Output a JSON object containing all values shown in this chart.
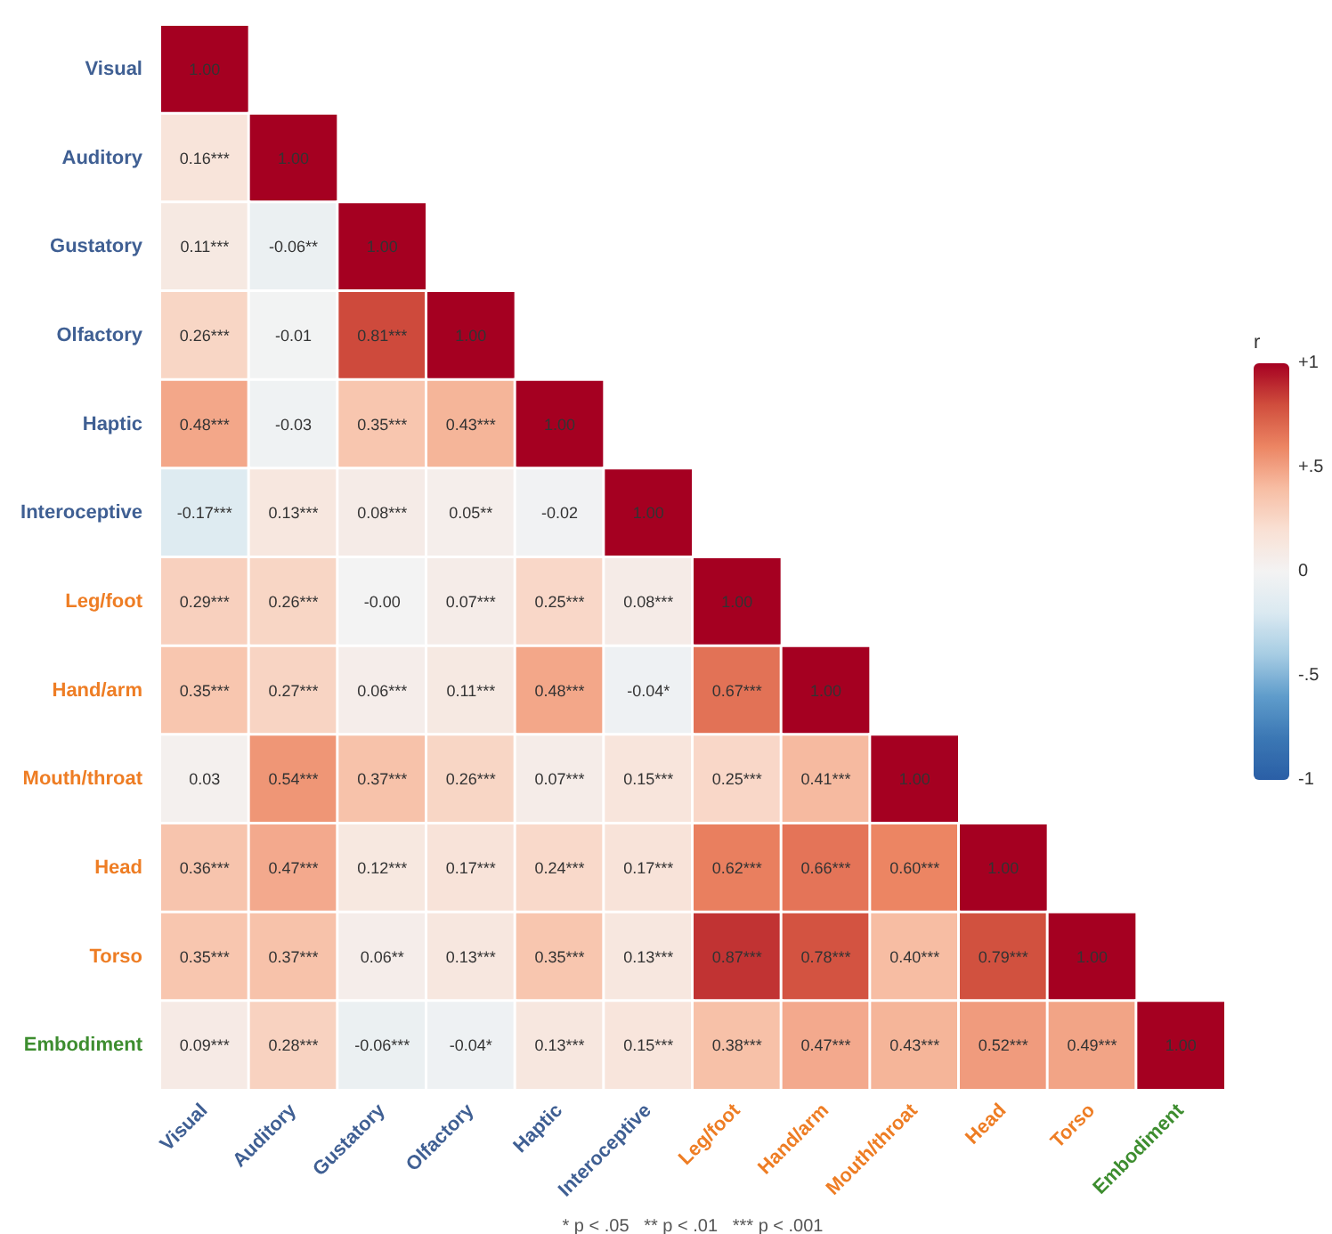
{
  "chart_data": {
    "type": "heatmap",
    "categories": [
      "Visual",
      "Auditory",
      "Gustatory",
      "Olfactory",
      "Haptic",
      "Interoceptive",
      "Leg/foot",
      "Hand/arm",
      "Mouth/throat",
      "Head",
      "Torso",
      "Embodiment"
    ],
    "y_categories": [
      "Visual",
      "Auditory",
      "Gustatory",
      "Olfactory",
      "Haptic",
      "Interoceptive",
      "Leg/foot",
      "Hand/arm",
      "Mouth/throat",
      "Head",
      "Torso",
      "Embodiment"
    ],
    "cells": [
      [
        1.0,
        null,
        null,
        null,
        null,
        null,
        null,
        null,
        null,
        null,
        null,
        null
      ],
      [
        0.16,
        1.0,
        null,
        null,
        null,
        null,
        null,
        null,
        null,
        null,
        null,
        null
      ],
      [
        0.11,
        -0.06,
        1.0,
        null,
        null,
        null,
        null,
        null,
        null,
        null,
        null,
        null
      ],
      [
        0.26,
        -0.01,
        0.81,
        1.0,
        null,
        null,
        null,
        null,
        null,
        null,
        null,
        null
      ],
      [
        0.48,
        -0.03,
        0.35,
        0.43,
        1.0,
        null,
        null,
        null,
        null,
        null,
        null,
        null
      ],
      [
        -0.17,
        0.13,
        0.08,
        0.05,
        -0.02,
        1.0,
        null,
        null,
        null,
        null,
        null,
        null
      ],
      [
        0.29,
        0.26,
        0.0,
        0.07,
        0.25,
        0.08,
        1.0,
        null,
        null,
        null,
        null,
        null
      ],
      [
        0.35,
        0.27,
        0.06,
        0.11,
        0.48,
        -0.04,
        0.67,
        1.0,
        null,
        null,
        null,
        null
      ],
      [
        0.03,
        0.54,
        0.37,
        0.26,
        0.07,
        0.15,
        0.25,
        0.41,
        1.0,
        null,
        null,
        null
      ],
      [
        0.36,
        0.47,
        0.12,
        0.17,
        0.24,
        0.17,
        0.62,
        0.66,
        0.6,
        1.0,
        null,
        null
      ],
      [
        0.35,
        0.37,
        0.06,
        0.13,
        0.35,
        0.13,
        0.87,
        0.78,
        0.4,
        0.79,
        1.0,
        null
      ],
      [
        0.09,
        0.28,
        -0.06,
        -0.04,
        0.13,
        0.15,
        0.38,
        0.47,
        0.43,
        0.52,
        0.49,
        1.0
      ]
    ],
    "cell_labels": [
      [
        "1.00",
        null,
        null,
        null,
        null,
        null,
        null,
        null,
        null,
        null,
        null,
        null
      ],
      [
        "0.16***",
        "1.00",
        null,
        null,
        null,
        null,
        null,
        null,
        null,
        null,
        null,
        null
      ],
      [
        "0.11***",
        "-0.06**",
        "1.00",
        null,
        null,
        null,
        null,
        null,
        null,
        null,
        null,
        null
      ],
      [
        "0.26***",
        "-0.01",
        "0.81***",
        "1.00",
        null,
        null,
        null,
        null,
        null,
        null,
        null,
        null
      ],
      [
        "0.48***",
        "-0.03",
        "0.35***",
        "0.43***",
        "1.00",
        null,
        null,
        null,
        null,
        null,
        null,
        null
      ],
      [
        "-0.17***",
        "0.13***",
        "0.08***",
        "0.05**",
        "-0.02",
        "1.00",
        null,
        null,
        null,
        null,
        null,
        null
      ],
      [
        "0.29***",
        "0.26***",
        "-0.00",
        "0.07***",
        "0.25***",
        "0.08***",
        "1.00",
        null,
        null,
        null,
        null,
        null
      ],
      [
        "0.35***",
        "0.27***",
        "0.06***",
        "0.11***",
        "0.48***",
        "-0.04*",
        "0.67***",
        "1.00",
        null,
        null,
        null,
        null
      ],
      [
        "0.03",
        "0.54***",
        "0.37***",
        "0.26***",
        "0.07***",
        "0.15***",
        "0.25***",
        "0.41***",
        "1.00",
        null,
        null,
        null
      ],
      [
        "0.36***",
        "0.47***",
        "0.12***",
        "0.17***",
        "0.24***",
        "0.17***",
        "0.62***",
        "0.66***",
        "0.60***",
        "1.00",
        null,
        null
      ],
      [
        "0.35***",
        "0.37***",
        "0.06**",
        "0.13***",
        "0.35***",
        "0.13***",
        "0.87***",
        "0.78***",
        "0.40***",
        "0.79***",
        "1.00",
        null
      ],
      [
        "0.09***",
        "0.28***",
        "-0.06***",
        "-0.04*",
        "0.13***",
        "0.15***",
        "0.38***",
        "0.47***",
        "0.43***",
        "0.52***",
        "0.49***",
        "1.00"
      ]
    ],
    "clabel": "r",
    "clim": [
      -1,
      1
    ],
    "cticks": [
      {
        "value": 1,
        "label": "+1"
      },
      {
        "value": 0.5,
        "label": "+.5"
      },
      0,
      {
        "value": -0.5,
        "label": "-.5"
      },
      {
        "value": -1,
        "label": "-1"
      }
    ],
    "annotations": [
      "* p < .05   ** p < .01   *** p < .001"
    ]
  }
}
